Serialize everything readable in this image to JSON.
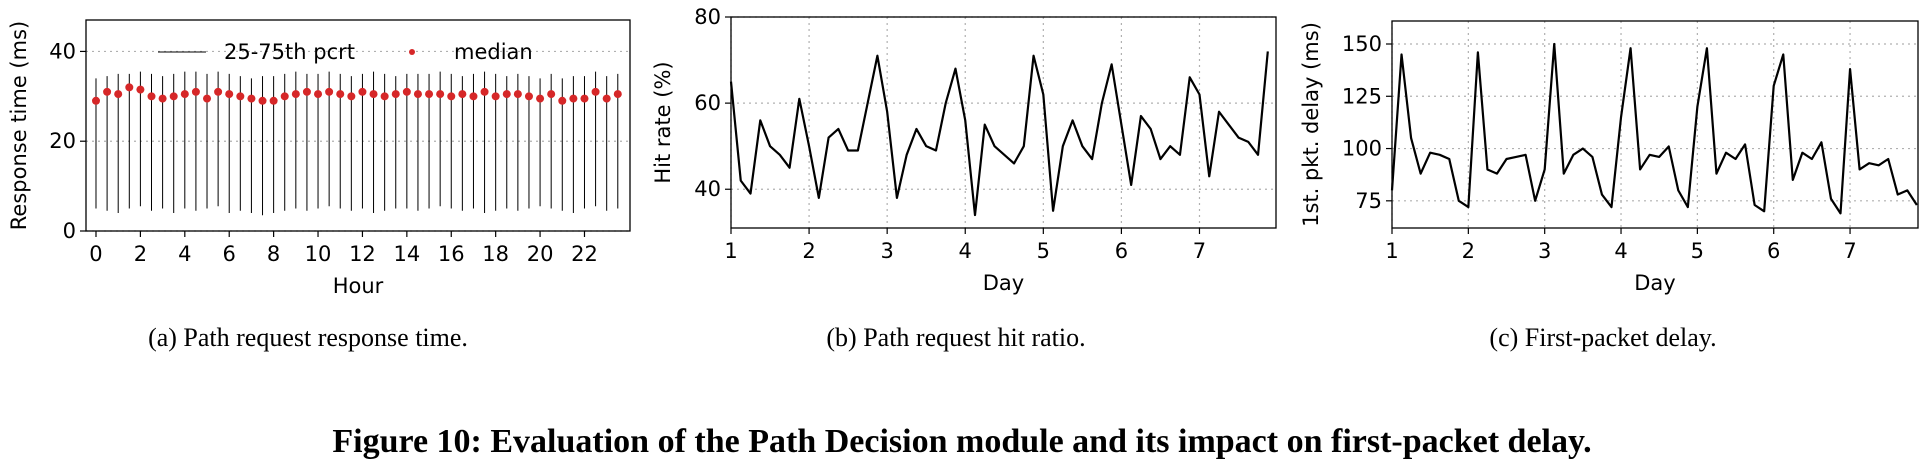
{
  "chart_data": [
    {
      "type": "range",
      "caption": "(a)  Path request response time.",
      "xlabel": "Hour",
      "ylabel": "Response time (ms)",
      "x": [
        0,
        0.5,
        1,
        1.5,
        2,
        2.5,
        3,
        3.5,
        4,
        4.5,
        5,
        5.5,
        6,
        6.5,
        7,
        7.5,
        8,
        8.5,
        9,
        9.5,
        10,
        10.5,
        11,
        11.5,
        12,
        12.5,
        13,
        13.5,
        14,
        14.5,
        15,
        15.5,
        16,
        16.5,
        17,
        17.5,
        18,
        18.5,
        19,
        19.5,
        20,
        20.5,
        21,
        21.5,
        22,
        22.5,
        23,
        23.5
      ],
      "series": [
        {
          "name": "25-75th pcrt",
          "color": "#000000",
          "low": [
            5,
            4.5,
            4,
            5,
            5.5,
            4.5,
            5,
            4,
            5,
            4.5,
            5,
            5.5,
            4,
            4.5,
            4,
            3.5,
            4,
            4.5,
            5,
            4.5,
            5,
            5.5,
            5,
            4.5,
            5,
            4,
            4.5,
            5,
            5,
            4.5,
            5,
            5.5,
            5,
            4.5,
            5,
            4,
            4.5,
            5,
            4.5,
            5,
            5.5,
            5,
            4.5,
            4,
            5,
            5.5,
            4.5,
            5
          ],
          "high": [
            34,
            34.5,
            35,
            35,
            35.5,
            35,
            34.5,
            35,
            35.5,
            35.5,
            35,
            35.5,
            35,
            34.5,
            34,
            34.5,
            34.5,
            35,
            35.5,
            35,
            35,
            35.5,
            35,
            34.5,
            35,
            35.5,
            35,
            34.5,
            35,
            35,
            35,
            35.5,
            35,
            34.5,
            35,
            35.5,
            35,
            34.5,
            35,
            34.5,
            34,
            35,
            34,
            34.5,
            34.5,
            35.5,
            34.5,
            35
          ]
        },
        {
          "name": "median",
          "color": "#d62728",
          "values": [
            29,
            31,
            30.5,
            32,
            31.5,
            30,
            29.5,
            30,
            30.5,
            31,
            29.5,
            31,
            30.5,
            30,
            29.5,
            29,
            29,
            30,
            30.5,
            31,
            30.5,
            31,
            30.5,
            30,
            31,
            30.5,
            30,
            30.5,
            31,
            30.5,
            30.5,
            30.5,
            30,
            30.5,
            30,
            31,
            30,
            30.5,
            30.5,
            30,
            29.5,
            30.5,
            29,
            29.5,
            29.5,
            31,
            29.5,
            30.5
          ]
        }
      ],
      "xlim": [
        -0.45,
        24.05
      ],
      "xticks": [
        0,
        2,
        4,
        6,
        8,
        10,
        12,
        14,
        16,
        18,
        20,
        22
      ],
      "ylim": [
        0,
        47
      ],
      "yticks": [
        0,
        20,
        40
      ],
      "grid": "y",
      "legend": "upper center"
    },
    {
      "type": "line",
      "caption": "(b)  Path request hit ratio.",
      "xlabel": "Day",
      "ylabel": "Hit rate (%)",
      "x": [
        1,
        1.125,
        1.25,
        1.375,
        1.5,
        1.625,
        1.75,
        1.875,
        2,
        2.125,
        2.25,
        2.375,
        2.5,
        2.625,
        2.75,
        2.875,
        3,
        3.125,
        3.25,
        3.375,
        3.5,
        3.625,
        3.75,
        3.875,
        4,
        4.125,
        4.25,
        4.375,
        4.5,
        4.625,
        4.75,
        4.875,
        5,
        5.125,
        5.25,
        5.375,
        5.5,
        5.625,
        5.75,
        5.875,
        6,
        6.125,
        6.25,
        6.375,
        6.5,
        6.625,
        6.75,
        6.875,
        7,
        7.125,
        7.25,
        7.375,
        7.5,
        7.625,
        7.75,
        7.875
      ],
      "series": [
        {
          "color": "#000000",
          "values": [
            65,
            42,
            39,
            56,
            50,
            48,
            45,
            61,
            50,
            38,
            52,
            54,
            49,
            49,
            60,
            71,
            58,
            38,
            48,
            54,
            50,
            49,
            60,
            68,
            56,
            34,
            55,
            50,
            48,
            46,
            50,
            71,
            62,
            35,
            50,
            56,
            50,
            47,
            60,
            69,
            55,
            41,
            57,
            54,
            47,
            50,
            48,
            66,
            62,
            43,
            58,
            55,
            52,
            51,
            48,
            72
          ]
        }
      ],
      "xlim": [
        1,
        7.98
      ],
      "xticks": [
        1,
        2,
        3,
        4,
        5,
        6,
        7
      ],
      "ylim": [
        31,
        80
      ],
      "yticks": [
        40,
        60,
        80
      ],
      "grid": true
    },
    {
      "type": "line",
      "caption": "(c)  First-packet delay.",
      "xlabel": "Day",
      "ylabel": "1st. pkt. delay (ms)",
      "x": [
        1,
        1.125,
        1.25,
        1.375,
        1.5,
        1.625,
        1.75,
        1.875,
        2,
        2.125,
        2.25,
        2.375,
        2.5,
        2.625,
        2.75,
        2.875,
        3,
        3.125,
        3.25,
        3.375,
        3.5,
        3.625,
        3.75,
        3.875,
        4,
        4.125,
        4.25,
        4.375,
        4.5,
        4.625,
        4.75,
        4.875,
        5,
        5.125,
        5.25,
        5.375,
        5.5,
        5.625,
        5.75,
        5.875,
        6,
        6.125,
        6.25,
        6.375,
        6.5,
        6.625,
        6.75,
        6.875,
        7,
        7.125,
        7.25,
        7.375,
        7.5,
        7.625,
        7.75,
        7.875
      ],
      "series": [
        {
          "color": "#000000",
          "values": [
            80,
            145,
            105,
            88,
            98,
            97,
            95,
            75,
            72,
            146,
            90,
            88,
            95,
            96,
            97,
            75,
            90,
            150,
            88,
            97,
            100,
            96,
            78,
            72,
            115,
            148,
            90,
            97,
            96,
            101,
            80,
            72,
            120,
            148,
            88,
            98,
            95,
            102,
            73,
            70,
            130,
            145,
            85,
            98,
            95,
            103,
            76,
            69,
            138,
            90,
            93,
            92,
            95,
            78,
            80,
            73
          ]
        }
      ],
      "xlim": [
        1,
        7.89
      ],
      "xticks": [
        1,
        2,
        3,
        4,
        5,
        6,
        7
      ],
      "ylim": [
        62,
        161
      ],
      "yticks": [
        75,
        100,
        125,
        150
      ],
      "grid": true
    }
  ],
  "figure_caption": "Figure 10: Evaluation of the Path Decision module and its impact on first-packet delay."
}
